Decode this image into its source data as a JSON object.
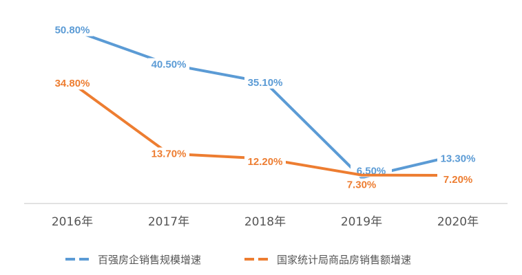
{
  "chart_data": {
    "type": "line",
    "title": "",
    "xlabel": "",
    "ylabel": "",
    "categories": [
      "2016年",
      "2017年",
      "2018年",
      "2019年",
      "2020年"
    ],
    "series": [
      {
        "name": "百强房企销售规模增速",
        "color": "#5B9BD5",
        "values": [
          50.8,
          40.5,
          35.1,
          6.5,
          13.3
        ],
        "labels": [
          "50.80%",
          "40.50%",
          "35.10%",
          "6.50%",
          "13.30%"
        ]
      },
      {
        "name": "国家统计局商品房销售额增速",
        "color": "#ED7D31",
        "values": [
          34.8,
          13.7,
          12.2,
          7.3,
          7.2
        ],
        "labels": [
          "34.80%",
          "13.70%",
          "12.20%",
          "7.30%",
          "7.20%"
        ]
      }
    ],
    "grid": false,
    "legend": "bottom",
    "axis_color": "#d9d9d9"
  }
}
